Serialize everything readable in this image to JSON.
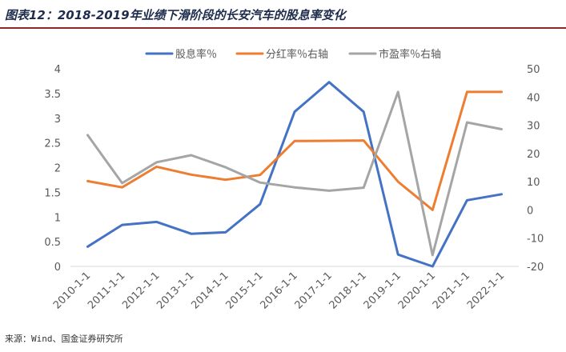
{
  "title": "图表12：2018-2019年业绩下滑阶段的长安汽车的股息率变化",
  "source": "来源：Wind、国金证券研究所",
  "chart_data": {
    "type": "line",
    "x": [
      "2010-1-1",
      "2011-1-1",
      "2012-1-1",
      "2013-1-1",
      "2014-1-1",
      "2015-1-1",
      "2016-1-1",
      "2017-1-1",
      "2018-1-1",
      "2019-1-1",
      "2020-1-1",
      "2021-1-1",
      "2022-1-1"
    ],
    "series": [
      {
        "name": "股息率％",
        "axis": "left",
        "color": "#4472c4",
        "values": [
          0.4,
          0.84,
          0.9,
          0.66,
          0.69,
          1.26,
          3.13,
          3.73,
          3.13,
          0.24,
          0.0,
          1.34,
          1.46
        ]
      },
      {
        "name": "分红率％右轴",
        "axis": "right",
        "color": "#ed7d31",
        "values": [
          10.2,
          8.0,
          15.3,
          12.5,
          10.7,
          12.4,
          24.4,
          24.5,
          24.6,
          10.0,
          0.0,
          41.8,
          41.8
        ]
      },
      {
        "name": "市盈率％右轴",
        "axis": "right",
        "color": "#a5a5a5",
        "values": [
          26.5,
          9.5,
          16.9,
          19.4,
          15.1,
          9.7,
          8.0,
          6.8,
          7.9,
          41.8,
          -16.0,
          31.0,
          28.6
        ]
      }
    ],
    "y_left": {
      "min": 0,
      "max": 4,
      "ticks": [
        "0",
        "0.5",
        "1",
        "1.5",
        "2",
        "2.5",
        "3",
        "3.5",
        "4"
      ]
    },
    "y_right": {
      "min": -20,
      "max": 50,
      "ticks": [
        "-20",
        "-10",
        "0",
        "10",
        "20",
        "30",
        "40",
        "50"
      ]
    },
    "grid": false,
    "legend_position": "top-center"
  }
}
